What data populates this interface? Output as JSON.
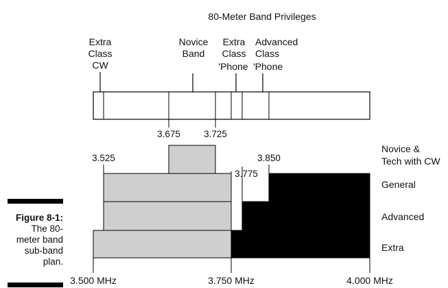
{
  "title": "80-Meter Band Privileges",
  "top_labels": {
    "extra_cw": [
      "Extra",
      "Class",
      "CW"
    ],
    "novice": [
      "Novice",
      "Band"
    ],
    "extra_phone": [
      "Extra",
      "Class",
      "'Phone"
    ],
    "advanced_phone": [
      "Advanced",
      "Class",
      "'Phone"
    ]
  },
  "freq_labels": {
    "f3675": "3.675",
    "f3725": "3.725",
    "f3525": "3.525",
    "f3775": "3.775",
    "f3850": "3.850"
  },
  "axis_labels": {
    "start": "3.500 MHz",
    "mid": "3.750 MHz",
    "end": "4.000 MHz"
  },
  "row_labels": {
    "novice": [
      "Novice &",
      "Tech with CW"
    ],
    "general": "General",
    "advanced": "Advanced",
    "extra": "Extra"
  },
  "caption": {
    "title": "Figure 8-1:",
    "lines": [
      "The 80-",
      "meter band",
      "sub-band",
      "plan."
    ]
  },
  "colors": {
    "cw_fill": "#cfcfcf",
    "phone_fill": "#000000",
    "outline": "#000000"
  }
}
